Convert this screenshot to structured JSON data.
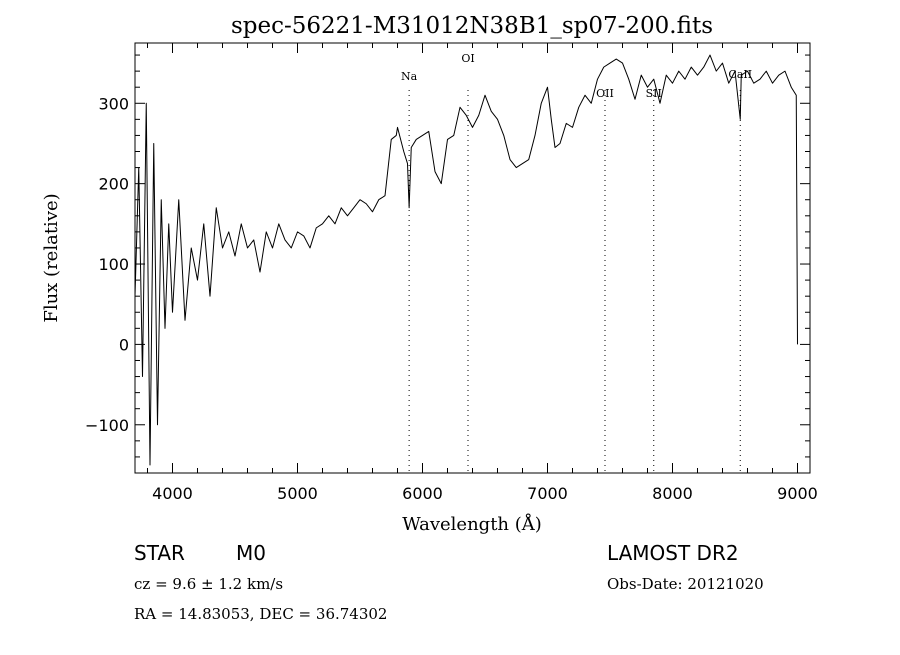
{
  "chart_data": {
    "type": "line",
    "title": "spec-56221-M31012N38B1_sp07-200.fits",
    "xlabel": "Wavelength (Å)",
    "ylabel": "Flux (relative)",
    "xlim": [
      3700,
      9100
    ],
    "ylim": [
      -160,
      375
    ],
    "xticks": [
      4000,
      5000,
      6000,
      7000,
      8000,
      9000
    ],
    "yticks": [
      -100,
      0,
      100,
      200,
      300
    ],
    "grid": false,
    "series": [
      {
        "x": [
          3700,
          3730,
          3760,
          3790,
          3820,
          3850,
          3880,
          3910,
          3940,
          3970,
          4000,
          4050,
          4100,
          4150,
          4200,
          4250,
          4300,
          4350,
          4400,
          4450,
          4500,
          4550,
          4600,
          4650,
          4700,
          4750,
          4800,
          4850,
          4900,
          4950,
          5000,
          5050,
          5100,
          5150,
          5200,
          5250,
          5300,
          5350,
          5400,
          5450,
          5500,
          5550,
          5600,
          5650,
          5700,
          5750,
          5790,
          5800,
          5850,
          5880,
          5893,
          5910,
          5950,
          6000,
          6050,
          6100,
          6150,
          6200,
          6250,
          6300,
          6350,
          6400,
          6450,
          6500,
          6550,
          6600,
          6650,
          6700,
          6750,
          6800,
          6850,
          6900,
          6950,
          7000,
          7030,
          7060,
          7100,
          7150,
          7200,
          7250,
          7300,
          7350,
          7400,
          7450,
          7500,
          7550,
          7600,
          7650,
          7700,
          7750,
          7800,
          7850,
          7900,
          7950,
          8000,
          8050,
          8100,
          8150,
          8200,
          8250,
          8300,
          8350,
          8400,
          8450,
          8500,
          8542,
          8550,
          8600,
          8650,
          8700,
          8750,
          8800,
          8850,
          8900,
          8950,
          8990,
          9000
        ],
        "y": [
          60,
          220,
          -40,
          300,
          -150,
          250,
          -100,
          180,
          20,
          150,
          40,
          180,
          30,
          120,
          80,
          150,
          60,
          170,
          120,
          140,
          110,
          150,
          120,
          130,
          90,
          140,
          120,
          150,
          130,
          120,
          140,
          135,
          120,
          145,
          150,
          160,
          150,
          170,
          160,
          170,
          180,
          175,
          165,
          180,
          185,
          255,
          260,
          270,
          240,
          225,
          170,
          245,
          255,
          260,
          265,
          215,
          200,
          255,
          260,
          295,
          285,
          270,
          285,
          310,
          290,
          280,
          260,
          230,
          220,
          225,
          230,
          260,
          300,
          320,
          280,
          245,
          250,
          275,
          270,
          295,
          310,
          300,
          330,
          345,
          350,
          355,
          350,
          330,
          305,
          335,
          320,
          330,
          300,
          335,
          325,
          340,
          330,
          345,
          335,
          345,
          360,
          340,
          350,
          325,
          340,
          280,
          335,
          340,
          325,
          330,
          340,
          325,
          335,
          340,
          320,
          310,
          0
        ]
      }
    ],
    "lines": [
      {
        "name": "Na",
        "x": 5893
      },
      {
        "name": "OI",
        "x": 6364
      },
      {
        "name": "OII",
        "x": 7460
      },
      {
        "name": "SII",
        "x": 7850
      },
      {
        "name": "CaII",
        "x": 8542
      }
    ]
  },
  "info": {
    "object_class": "STAR",
    "subclass": "M0",
    "survey": "LAMOST DR2",
    "redshift": "cz = 9.6 ± 1.2 km/s",
    "obs_date": "Obs-Date: 20121020",
    "coords": "RA =  14.83053, DEC =  36.74302"
  }
}
